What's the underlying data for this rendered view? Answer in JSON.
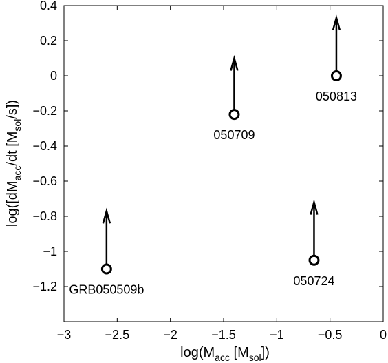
{
  "chart_data": {
    "type": "scatter",
    "xlim": [
      -3,
      0
    ],
    "ylim": [
      -1.4,
      0.4
    ],
    "xticks": [
      -3,
      -2.5,
      -2,
      -1.5,
      -1,
      -0.5,
      0
    ],
    "xtick_labels": [
      "−3",
      "−2.5",
      "−2",
      "−1.5",
      "−1",
      "−0.5",
      "0"
    ],
    "yticks": [
      0.4,
      0.2,
      0,
      -0.2,
      -0.4,
      -0.6,
      -0.8,
      -1,
      -1.2
    ],
    "ytick_labels": [
      "0.4",
      "0.2",
      "0",
      "−0.2",
      "−0.4",
      "−0.6",
      "−0.8",
      "−1",
      "−1.2"
    ],
    "grid": false,
    "xlabel": {
      "prefix": "log(M",
      "sub1": "acc",
      "middle": " [M",
      "sub2": "sol",
      "suffix": "])"
    },
    "ylabel": {
      "prefix": "log([dM",
      "sub1": "acc",
      "middle": "/dt [M",
      "sub2": "sol",
      "suffix": "/s])"
    },
    "points": [
      {
        "label": "GRB050509b",
        "x": -2.6,
        "y": -1.1,
        "arrow_tip_y": -0.77,
        "label_pos": "below"
      },
      {
        "label": "050709",
        "x": -1.4,
        "y": -0.22,
        "arrow_tip_y": 0.1,
        "label_pos": "below"
      },
      {
        "label": "050724",
        "x": -0.65,
        "y": -1.05,
        "arrow_tip_y": -0.72,
        "label_pos": "below"
      },
      {
        "label": "050813",
        "x": -0.44,
        "y": 0.0,
        "arrow_tip_y": 0.33,
        "label_pos": "below"
      }
    ],
    "marker": "open-circle",
    "annotation": "upward arrows (lower limits)",
    "color": "#000000"
  }
}
